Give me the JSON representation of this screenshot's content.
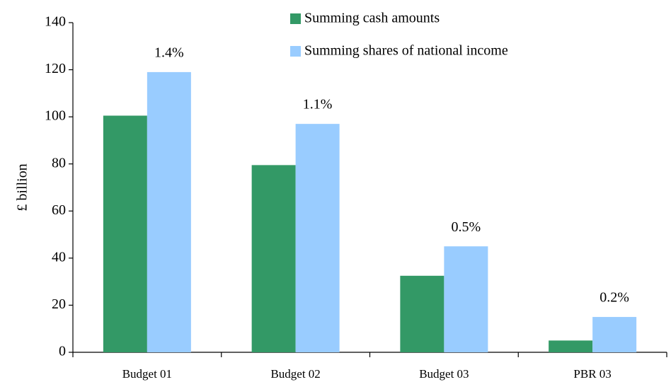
{
  "chart_data": {
    "type": "bar",
    "y_label": "£ billion",
    "categories": [
      "Budget 01",
      "Budget 02",
      "Budget 03",
      "PBR 03"
    ],
    "series": [
      {
        "name": "Summing cash amounts",
        "color": "#339966",
        "values": [
          100.5,
          79.5,
          32.5,
          5
        ]
      },
      {
        "name": "Summing shares of national income",
        "color": "#99ccff",
        "values": [
          119,
          97,
          45,
          15
        ]
      }
    ],
    "annotations": [
      "1.4%",
      "1.1%",
      "0.5%",
      "0.2%"
    ],
    "ylim": [
      0,
      140
    ],
    "yticks": [
      0,
      20,
      40,
      60,
      80,
      100,
      120,
      140
    ],
    "grid": false
  }
}
